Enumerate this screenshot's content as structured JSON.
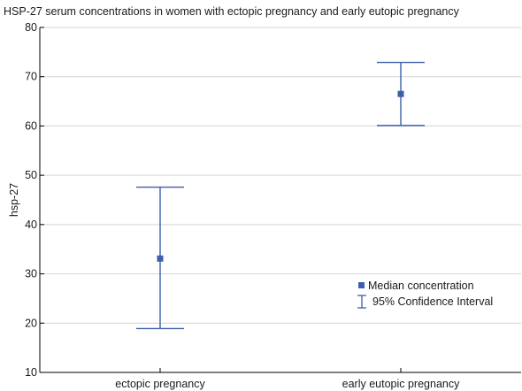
{
  "chart_data": {
    "type": "scatter",
    "title": "HSP-27 serum concentrations in women with ectopic pregnancy and early eutopic pregnancy",
    "xlabel": "",
    "ylabel": "hsp-27",
    "categories": [
      "ectopic pregnancy",
      "early eutopic pregnancy"
    ],
    "series": [
      {
        "name": "Median concentration",
        "values": [
          33.1,
          66.5
        ],
        "ci_lower": [
          18.9,
          60.1
        ],
        "ci_upper": [
          47.6,
          72.9
        ]
      }
    ],
    "error_bar_label": "95% Confidence Interval",
    "ylim": [
      10,
      80
    ],
    "yticks": [
      10,
      20,
      30,
      40,
      50,
      60,
      70,
      80
    ],
    "grid": true,
    "legend_position": "lower-right",
    "colors": {
      "series": "#3d5fa8",
      "grid": "#d4d4d4",
      "axis": "#000000"
    }
  }
}
